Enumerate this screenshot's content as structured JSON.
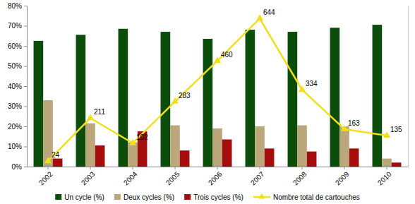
{
  "chart_data": {
    "type": "bar",
    "categories": [
      "2002",
      "2003",
      "2004",
      "2005",
      "2006",
      "2007",
      "2008",
      "2009",
      "2010"
    ],
    "ylim": [
      0,
      80
    ],
    "yticks": [
      {
        "value": 0,
        "label": "0%"
      },
      {
        "value": 10,
        "label": "10%"
      },
      {
        "value": 20,
        "label": "20%"
      },
      {
        "value": 30,
        "label": "30%"
      },
      {
        "value": 40,
        "label": "40%"
      },
      {
        "value": 50,
        "label": "50%"
      },
      {
        "value": 60,
        "label": "60%"
      },
      {
        "value": 70,
        "label": "70%"
      },
      {
        "value": 80,
        "label": "80%"
      }
    ],
    "y2lim": [
      0,
      700
    ],
    "grid": false,
    "legend": "bottom",
    "series": [
      {
        "name": "Un cycle (%)",
        "color": "#0c4d0c",
        "values": [
          62.5,
          65.5,
          68.5,
          67,
          63.5,
          68,
          67,
          69,
          70.5
        ]
      },
      {
        "name": "Deux cycles (%)",
        "color": "#bba77c",
        "values": [
          33,
          21.5,
          12,
          20.5,
          19,
          20,
          20.5,
          20,
          4
        ]
      },
      {
        "name": "Trois cycles (%)",
        "color": "#a50d0d",
        "values": [
          4,
          10.5,
          17.5,
          8,
          13.5,
          9,
          7.5,
          9,
          2
        ]
      },
      {
        "name": "Nombre total de cartouches",
        "type": "line",
        "axis": "y2",
        "color": "#f2df1a",
        "marker": "triangle",
        "data_labels": true,
        "values": [
          24,
          211,
          102,
          283,
          460,
          644,
          334,
          163,
          135
        ]
      }
    ]
  }
}
